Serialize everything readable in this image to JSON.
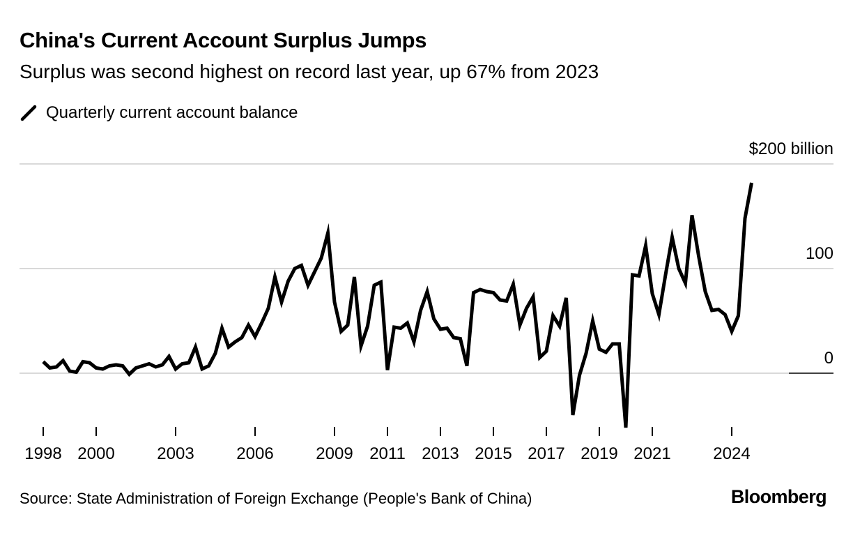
{
  "header": {
    "title": "China's Current Account Surplus Jumps",
    "subtitle": "Surplus was second highest on record last year, up 67% from 2023"
  },
  "legend": {
    "label": "Quarterly current account balance",
    "icon": "diagonal-line-icon"
  },
  "footer": {
    "source": "Source: State Administration of Foreign Exchange (People's Bank of China)",
    "logo": "Bloomberg"
  },
  "colors": {
    "line": "#000000",
    "grid": "#d9d9d9",
    "text": "#000000",
    "background": "#ffffff"
  },
  "chart_data": {
    "type": "line",
    "title": "China's Current Account Surplus Jumps",
    "subtitle": "Surplus was second highest on record last year, up 67% from 2023",
    "xlabel": "",
    "ylabel": "$ billion",
    "unit_label": "$200 billion",
    "ylim": [
      -55,
      200
    ],
    "xlim": [
      1997.7,
      2026.1
    ],
    "grid": true,
    "legend_position": "top-left",
    "y_ticks": [
      {
        "value": 200,
        "label": "$200 billion"
      },
      {
        "value": 100,
        "label": "100"
      },
      {
        "value": 0,
        "label": "0"
      }
    ],
    "x_ticks": [
      {
        "value": 1998,
        "label": "1998"
      },
      {
        "value": 2000,
        "label": "2000"
      },
      {
        "value": 2003,
        "label": "2003"
      },
      {
        "value": 2006,
        "label": "2006"
      },
      {
        "value": 2009,
        "label": "2009"
      },
      {
        "value": 2011,
        "label": "2011"
      },
      {
        "value": 2013,
        "label": "2013"
      },
      {
        "value": 2015,
        "label": "2015"
      },
      {
        "value": 2017,
        "label": "2017"
      },
      {
        "value": 2019,
        "label": "2019"
      },
      {
        "value": 2021,
        "label": "2021"
      },
      {
        "value": 2024,
        "label": "2024"
      }
    ],
    "series": [
      {
        "name": "Quarterly current account balance",
        "start": 1998.0,
        "step": 0.25,
        "values": [
          11,
          5,
          6,
          12,
          2,
          1,
          11,
          10,
          5,
          4,
          7,
          8,
          7,
          -1,
          5,
          7,
          9,
          6,
          8,
          16,
          4,
          9,
          10,
          25,
          4,
          7,
          19,
          43,
          25,
          30,
          34,
          46,
          35,
          48,
          62,
          92,
          68,
          88,
          100,
          103,
          84,
          97,
          110,
          134,
          68,
          40,
          46,
          92,
          26,
          45,
          84,
          87,
          3,
          44,
          43,
          48,
          30,
          60,
          78,
          52,
          42,
          43,
          34,
          33,
          7,
          77,
          80,
          78,
          77,
          70,
          69,
          85,
          46,
          62,
          73,
          15,
          21,
          55,
          45,
          72,
          -40,
          -2,
          19,
          50,
          23,
          20,
          28,
          28,
          -52,
          94,
          93,
          122,
          76,
          56,
          94,
          130,
          100,
          86,
          151,
          112,
          78,
          60,
          61,
          56,
          40,
          55,
          148,
          182
        ]
      }
    ]
  }
}
